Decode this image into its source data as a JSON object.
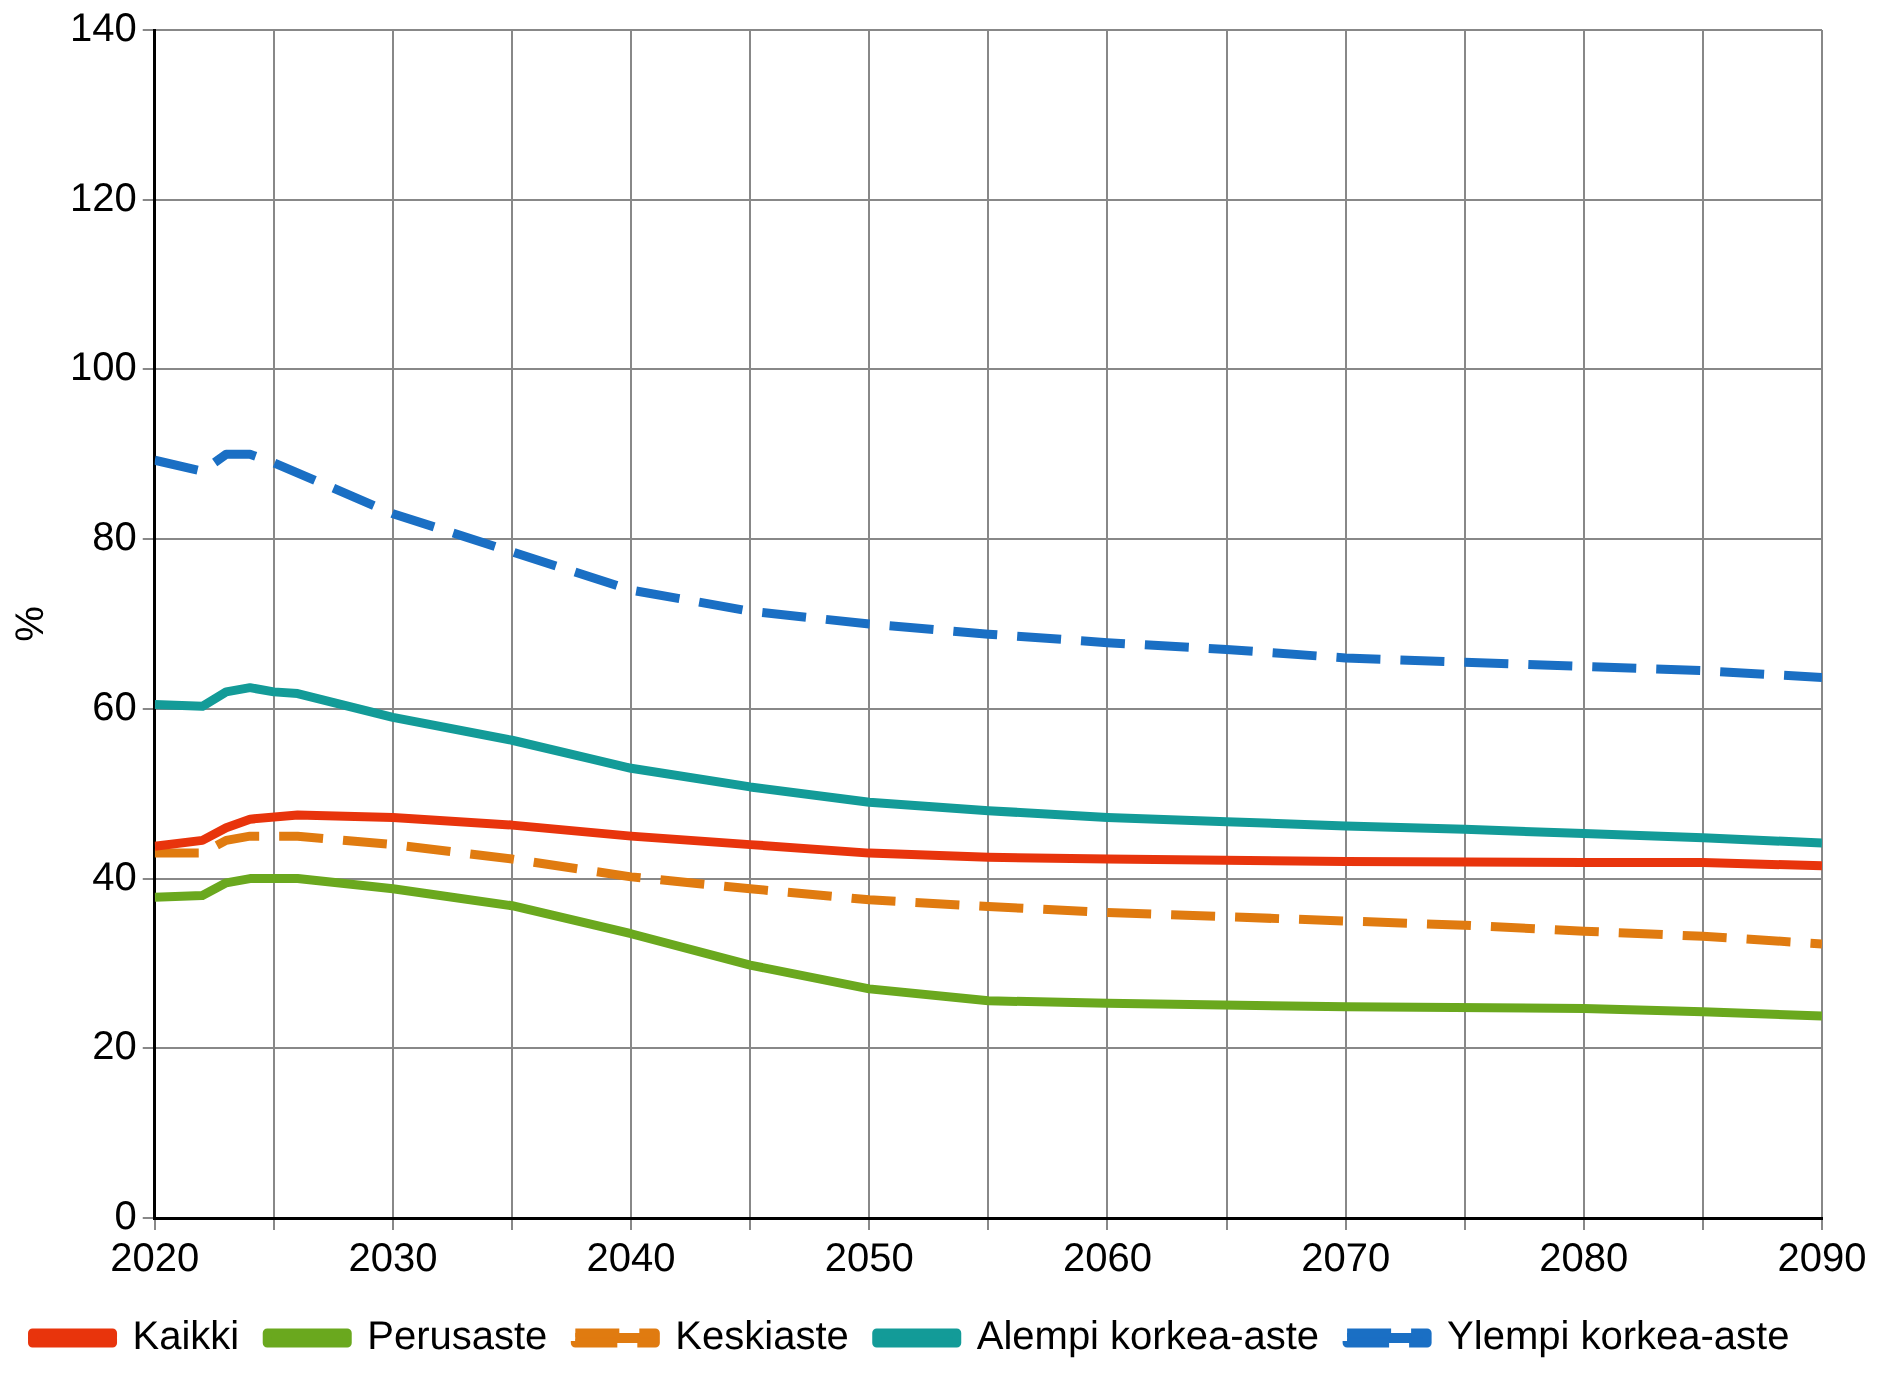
{
  "chart_data": {
    "type": "line",
    "ylabel": "%",
    "xlim": [
      2020,
      2090
    ],
    "xticks": [
      2020,
      {
        "value": 2025,
        "label": null
      },
      2030,
      {
        "value": 2035,
        "label": null
      },
      2040,
      {
        "value": 2045,
        "label": null
      },
      2050,
      {
        "value": 2055,
        "label": null
      },
      2060,
      {
        "value": 2065,
        "label": null
      },
      2070,
      {
        "value": 2075,
        "label": null
      },
      2080,
      {
        "value": 2085,
        "label": null
      },
      2090
    ],
    "ylim": [
      0,
      140
    ],
    "yticks": [
      0,
      20,
      40,
      60,
      80,
      100,
      120,
      140
    ],
    "grid": true,
    "legend": "bottom",
    "marker": "none",
    "series": [
      {
        "name": "Kaikki",
        "color": "#e8340c",
        "line_style": "solid",
        "x": [
          2020,
          2022,
          2023,
          2024,
          2026,
          2030,
          2035,
          2040,
          2045,
          2050,
          2055,
          2060,
          2070,
          2080,
          2085,
          2090
        ],
        "values": [
          43.8,
          44.5,
          46,
          47,
          47.5,
          47.2,
          46.3,
          45,
          44,
          43,
          42.5,
          42.3,
          42,
          41.9,
          41.9,
          41.5
        ]
      },
      {
        "name": "Perusaste",
        "color": "#6aa81e",
        "line_style": "solid",
        "x": [
          2020,
          2022,
          2023,
          2024,
          2026,
          2030,
          2035,
          2040,
          2045,
          2050,
          2055,
          2060,
          2070,
          2080,
          2085,
          2090
        ],
        "values": [
          37.8,
          38,
          39.5,
          40,
          40,
          38.8,
          36.8,
          33.5,
          29.8,
          27,
          25.6,
          25.3,
          24.9,
          24.7,
          24.3,
          23.8
        ]
      },
      {
        "name": "Keskiaste",
        "color": "#e07b10",
        "line_style": "dashed",
        "x": [
          2020,
          2022,
          2023,
          2024,
          2026,
          2030,
          2035,
          2040,
          2045,
          2050,
          2055,
          2060,
          2070,
          2075,
          2080,
          2085,
          2090
        ],
        "values": [
          43,
          43,
          44.5,
          45,
          45,
          44,
          42.3,
          40.2,
          38.8,
          37.5,
          36.7,
          36,
          35,
          34.5,
          33.8,
          33.2,
          32.3
        ]
      },
      {
        "name": "Alempi korkea-aste",
        "color": "#139b98",
        "line_style": "solid",
        "x": [
          2020,
          2022,
          2023,
          2024,
          2025,
          2026,
          2030,
          2035,
          2040,
          2045,
          2050,
          2055,
          2060,
          2065,
          2070,
          2075,
          2080,
          2085,
          2090
        ],
        "values": [
          60.5,
          60.3,
          62,
          62.5,
          62,
          61.8,
          59,
          56.3,
          53,
          50.8,
          49,
          48,
          47.2,
          46.7,
          46.2,
          45.8,
          45.3,
          44.8,
          44.2
        ]
      },
      {
        "name": "Ylempi korkea-aste",
        "color": "#1a6fc4",
        "line_style": "dashed",
        "x": [
          2020,
          2022,
          2023,
          2024,
          2025,
          2030,
          2035,
          2040,
          2045,
          2050,
          2055,
          2060,
          2065,
          2070,
          2075,
          2080,
          2085,
          2090
        ],
        "values": [
          89.3,
          88,
          90,
          90,
          89,
          83,
          78.5,
          74,
          71.5,
          70,
          68.8,
          67.8,
          67,
          66,
          65.5,
          65,
          64.5,
          63.7
        ]
      }
    ]
  }
}
